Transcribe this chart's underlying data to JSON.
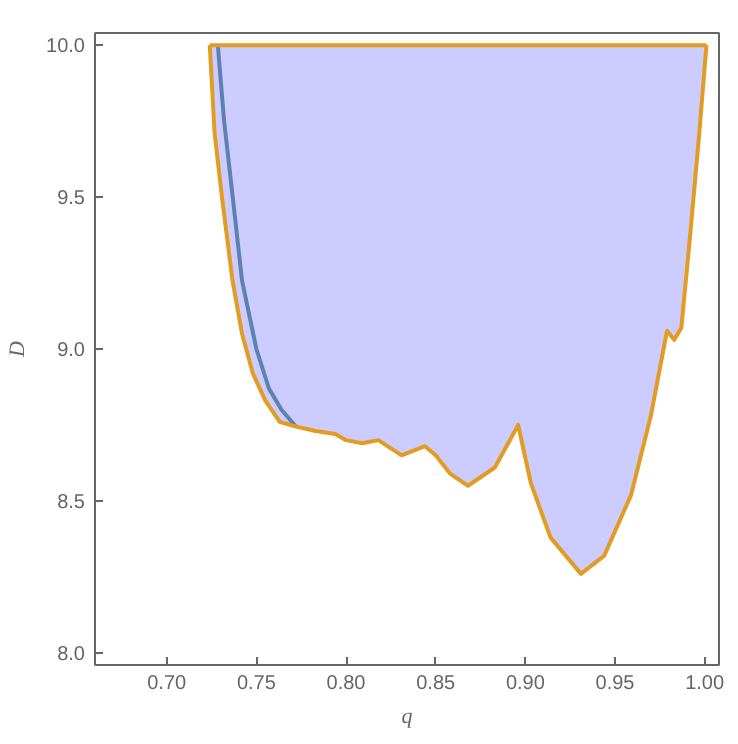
{
  "chart_data": {
    "type": "line",
    "xlabel": "q",
    "ylabel": "D",
    "xlim": [
      0.66,
      1.008
    ],
    "ylim": [
      7.96,
      10.04
    ],
    "xticks": [
      {
        "value": 0.7,
        "label": "0.70"
      },
      {
        "value": 0.75,
        "label": "0.75"
      },
      {
        "value": 0.8,
        "label": "0.80"
      },
      {
        "value": 0.85,
        "label": "0.85"
      },
      {
        "value": 0.9,
        "label": "0.90"
      },
      {
        "value": 0.95,
        "label": "0.95"
      },
      {
        "value": 1.0,
        "label": "1.00"
      }
    ],
    "yticks": [
      {
        "value": 8.0,
        "label": "8.0"
      },
      {
        "value": 8.5,
        "label": "8.5"
      },
      {
        "value": 9.0,
        "label": "9.0"
      },
      {
        "value": 9.5,
        "label": "9.5"
      },
      {
        "value": 10.0,
        "label": "10.0"
      }
    ],
    "grid": false,
    "marker": "none",
    "line_style": "solid",
    "series": [
      {
        "type": "line",
        "color": "#5e81b5",
        "x": [
          0.7285,
          0.732,
          0.737,
          0.742,
          0.75,
          0.757,
          0.764,
          0.772
        ],
        "values": [
          10.0,
          9.75,
          9.49,
          9.225,
          9.0,
          8.87,
          8.8,
          8.745
        ]
      },
      {
        "color": "#e19c24",
        "x": [
          0.724,
          0.7267,
          0.731,
          0.7367,
          0.742,
          0.748,
          0.755,
          0.763,
          0.772,
          0.783,
          0.794,
          0.8,
          0.809,
          0.818,
          0.831,
          0.844,
          0.85,
          0.858,
          0.868,
          0.883,
          0.896,
          0.903,
          0.914,
          0.931,
          0.944,
          0.959,
          0.97,
          0.979,
          0.983,
          0.987,
          0.992,
          0.997,
          1.001
        ],
        "values": [
          10.0,
          9.71,
          9.49,
          9.225,
          9.05,
          8.92,
          8.83,
          8.76,
          8.745,
          8.73,
          8.72,
          8.7,
          8.69,
          8.7,
          8.65,
          8.68,
          8.65,
          8.59,
          8.55,
          8.61,
          8.75,
          8.56,
          8.38,
          8.26,
          8.32,
          8.52,
          8.78,
          9.06,
          9.03,
          9.07,
          9.38,
          9.71,
          10.0
        ],
        "lower": [
          10.0,
          9.71,
          9.49,
          9.225,
          9.05,
          8.92,
          8.83,
          8.76,
          8.745,
          8.73,
          8.72,
          8.7,
          8.69,
          8.7,
          8.65,
          8.68,
          8.65,
          8.59,
          8.55,
          8.61,
          8.75,
          8.56,
          8.38,
          8.26,
          8.32,
          8.52,
          8.78,
          9.06,
          9.03,
          9.07,
          9.38,
          9.71,
          10.0
        ],
        "upper": [
          10.0,
          10.0,
          10.0,
          10.0,
          10.0,
          10.0,
          10.0,
          10.0,
          10.0,
          10.0,
          10.0,
          10.0,
          10.0,
          10.0,
          10.0,
          10.0,
          10.0,
          10.0,
          10.0,
          10.0,
          10.0,
          10.0,
          10.0,
          10.0,
          10.0,
          10.0,
          10.0,
          10.0,
          10.0,
          10.0,
          10.0,
          10.0,
          10.0
        ]
      },
      {
        "type": "line",
        "color": "#e19c24",
        "x": [
          0.724,
          1.001
        ],
        "values": [
          10.0,
          10.0
        ]
      }
    ]
  }
}
